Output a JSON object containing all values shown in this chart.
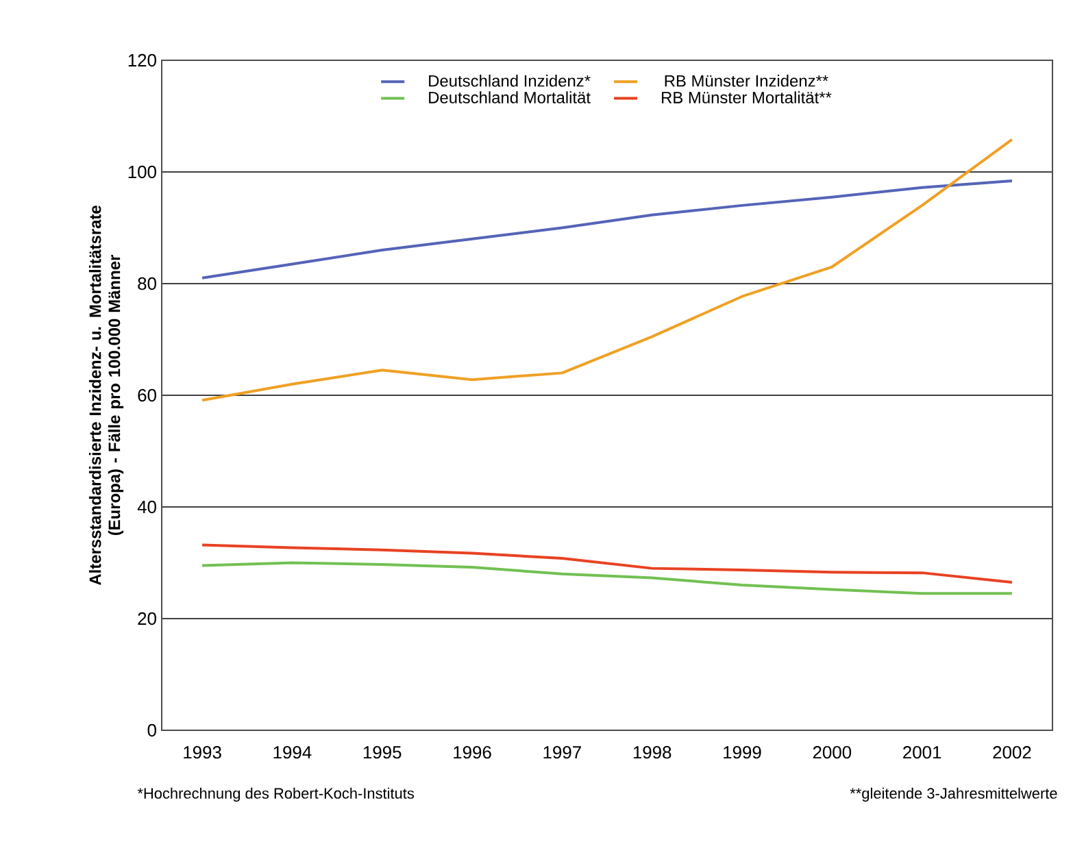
{
  "chart_data": {
    "type": "line",
    "categories": [
      "1993",
      "1994",
      "1995",
      "1996",
      "1997",
      "1998",
      "1999",
      "2000",
      "2001",
      "2002"
    ],
    "ylabel": "Altersstandardisierte Inzidenz- u. Mortalitätsrate (Europa) - Fälle pro 100.000 Männer",
    "ylim": [
      0,
      120
    ],
    "yticks": [
      0,
      20,
      40,
      60,
      80,
      100,
      120
    ],
    "grid": "y",
    "legend": "top",
    "line_style": "solid",
    "marker": "none",
    "series": [
      {
        "name": "Deutschland Inzidenz*",
        "color": "#5563b8",
        "values": [
          81,
          83.5,
          86,
          88,
          90,
          92.3,
          94,
          95.5,
          97.2,
          98.4
        ]
      },
      {
        "name": "RB Münster Inzidenz**",
        "color": "#f0a024",
        "values": [
          59.1,
          62,
          64.5,
          62.8,
          64,
          70.5,
          77.7,
          83,
          94,
          105.8
        ]
      },
      {
        "name": "Deutschland Mortalität",
        "color": "#72c052",
        "values": [
          29.5,
          30,
          29.7,
          29.2,
          28,
          27.3,
          26,
          25.2,
          24.5,
          24.5
        ]
      },
      {
        "name": "RB Münster Mortalität**",
        "color": "#e84222",
        "values": [
          33.2,
          32.7,
          32.3,
          31.7,
          30.8,
          29,
          28.7,
          28.3,
          28.2,
          26.5
        ]
      }
    ],
    "annotations": [
      "*Hochrechnung des Robert-Koch-Instituts",
      "**gleitende 3-Jahresmittelwerte"
    ]
  }
}
